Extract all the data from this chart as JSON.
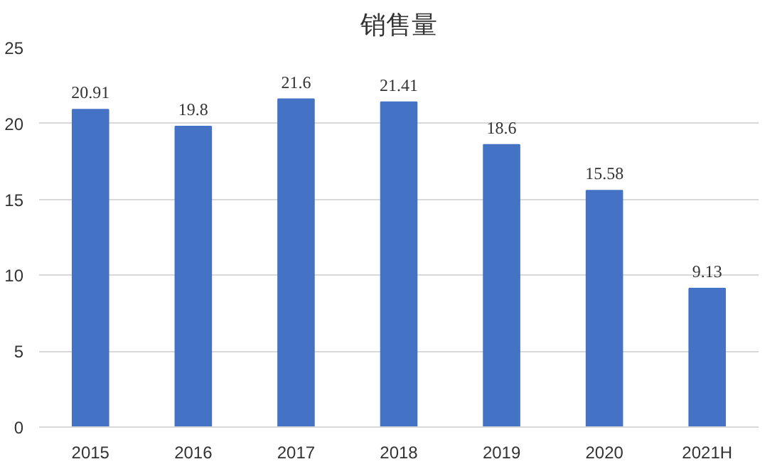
{
  "chart_data": {
    "type": "bar",
    "title": "销售量",
    "categories": [
      "2015",
      "2016",
      "2017",
      "2018",
      "2019",
      "2020",
      "2021H"
    ],
    "values": [
      20.91,
      19.8,
      21.6,
      21.41,
      18.6,
      15.58,
      9.13
    ],
    "color": "#4472c4",
    "ylim": [
      0,
      25
    ],
    "yticks": [
      0,
      5,
      10,
      15,
      20,
      25
    ],
    "grid": "y",
    "data_labels": true
  }
}
